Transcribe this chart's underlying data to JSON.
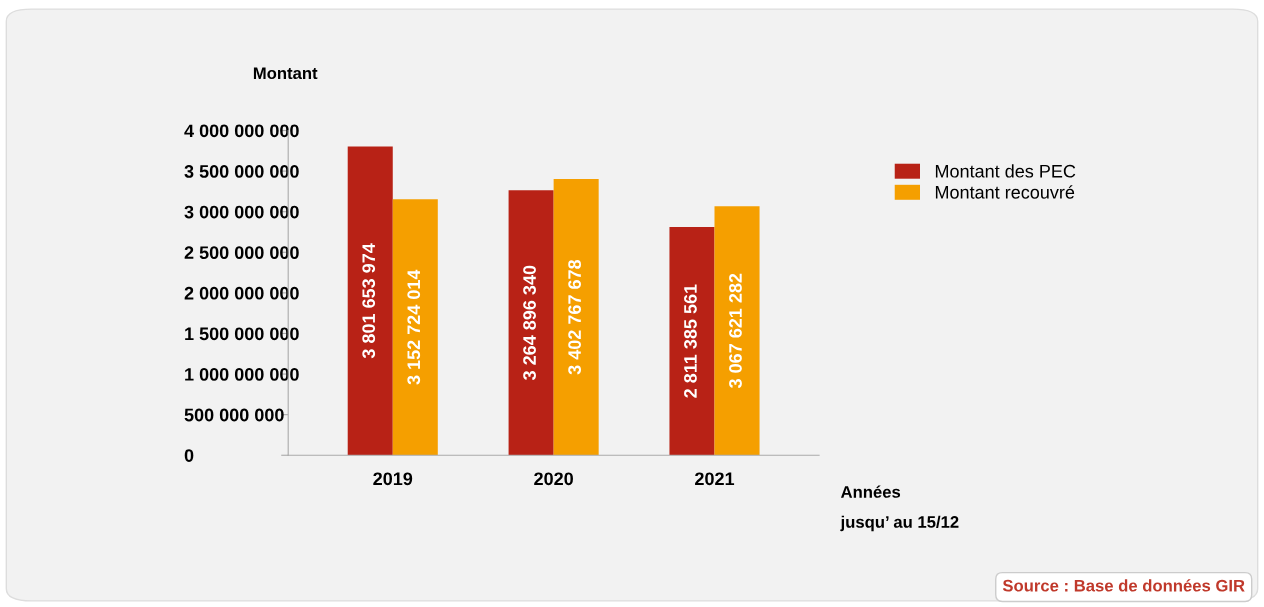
{
  "chart_data": {
    "type": "bar",
    "ylabel": "Montant",
    "xlabel": "Années\njusqu’ au 15/12",
    "categories": [
      "2019",
      "2020",
      "2021"
    ],
    "series": [
      {
        "name": "Montant des PEC",
        "color": "#b82216",
        "values": [
          3801653974,
          3264896340,
          2811385561
        ],
        "value_labels": [
          "3 801 653 974",
          "3 264 896 340",
          "2 811 385 561"
        ]
      },
      {
        "name": "Montant recouvré",
        "color": "#f59f00",
        "values": [
          3152724014,
          3402767678,
          3067621282
        ],
        "value_labels": [
          "3 152 724 014",
          "3 402 767 678",
          "3 067 621 282"
        ]
      }
    ],
    "ylim": [
      0,
      4000000000
    ],
    "yticks": [
      {
        "value": 0,
        "label": "0"
      },
      {
        "value": 500000000,
        "label": "500 000 000"
      },
      {
        "value": 1000000000,
        "label": "1 000 000 000"
      },
      {
        "value": 1500000000,
        "label": "1 500 000 000"
      },
      {
        "value": 2000000000,
        "label": "2 000 000 000"
      },
      {
        "value": 2500000000,
        "label": "2 500 000 000"
      },
      {
        "value": 3000000000,
        "label": "3 000 000 000"
      },
      {
        "value": 3500000000,
        "label": "3 500 000 000"
      },
      {
        "value": 4000000000,
        "label": "4 000 000 000"
      }
    ],
    "grid": false,
    "legend": "right",
    "annotations": [
      "Source : Base de données GIR"
    ]
  }
}
